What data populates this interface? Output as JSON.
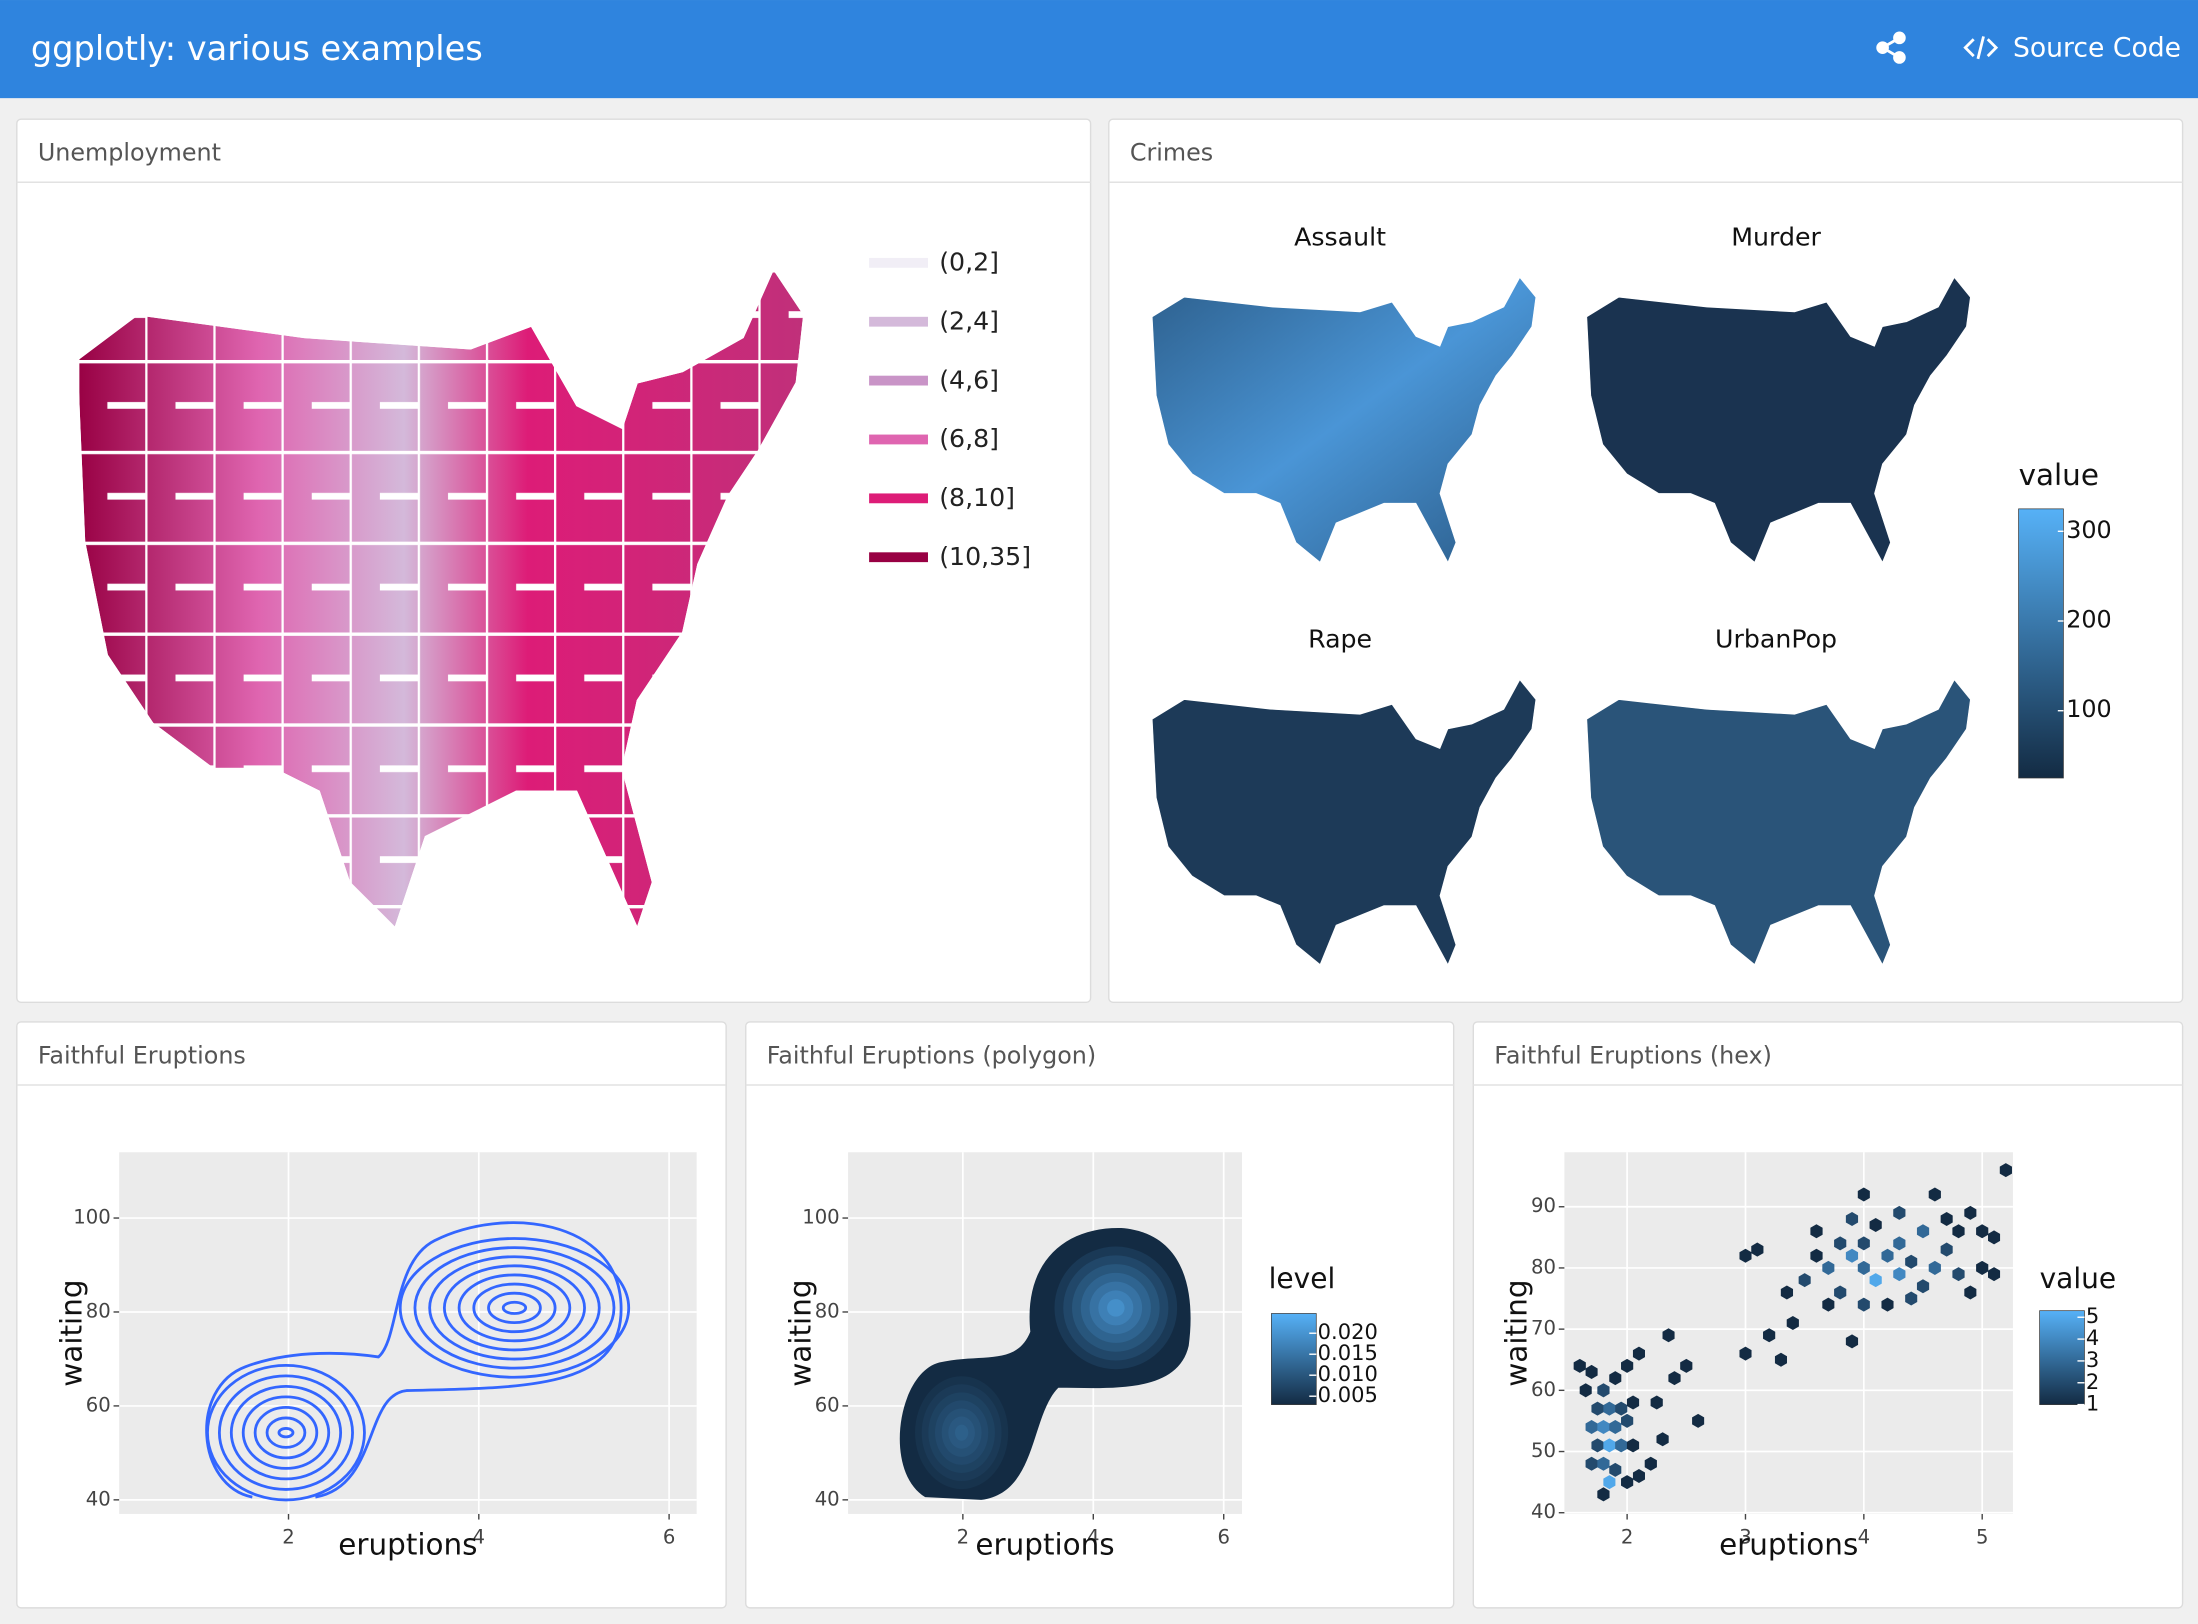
{
  "header": {
    "title": "ggplotly: various examples",
    "links": [
      "Source Code"
    ]
  },
  "panels": [
    {
      "title": "Unemployment",
      "chart_data": {
        "type": "choropleth",
        "legend": [
          {
            "label": "(0,2]",
            "color": "#f1eef6"
          },
          {
            "label": "(2,4]",
            "color": "#d4b9da"
          },
          {
            "label": "(4,6]",
            "color": "#c994c7"
          },
          {
            "label": "(6,8]",
            "color": "#df65b0"
          },
          {
            "label": "(8,10]",
            "color": "#dd1c77"
          },
          {
            "label": "(10,35]",
            "color": "#980043"
          }
        ]
      }
    },
    {
      "title": "Crimes",
      "chart_data": {
        "type": "choropleth-facets",
        "facets": [
          "Assault",
          "Murder",
          "Rape",
          "UrbanPop"
        ],
        "colorbar": {
          "title": "value",
          "lim": [
            25,
            325
          ],
          "ticks": [
            100,
            200,
            300
          ],
          "colors": [
            "#132b43",
            "#56b1f7"
          ]
        }
      }
    },
    {
      "title": "Faithful Eruptions",
      "chart_data": {
        "type": "contour",
        "xlabel": "eruptions",
        "ylabel": "waiting",
        "xlim": [
          0.22,
          6.29
        ],
        "ylim": [
          37,
          114
        ],
        "xticks": [
          2,
          4,
          6
        ],
        "yticks": [
          40,
          60,
          80,
          100
        ],
        "color": "#3366ff",
        "grid": true
      }
    },
    {
      "title": "Faithful Eruptions (polygon)",
      "chart_data": {
        "type": "density-polygon",
        "xlabel": "eruptions",
        "ylabel": "waiting",
        "xlim": [
          0.24,
          6.28
        ],
        "ylim": [
          37,
          114
        ],
        "xticks": [
          2,
          4,
          6
        ],
        "yticks": [
          40,
          60,
          80,
          100
        ],
        "grid": true,
        "colorbar": {
          "title": "level",
          "lim": [
            0.003,
            0.0247
          ],
          "ticks": [
            {
              "value": 0.005,
              "label": "0.005"
            },
            {
              "value": 0.01,
              "label": "0.010"
            },
            {
              "value": 0.015,
              "label": "0.015"
            },
            {
              "value": 0.02,
              "label": "0.020"
            }
          ],
          "colors": [
            "#132b43",
            "#56b1f7"
          ]
        }
      }
    },
    {
      "title": "Faithful Eruptions (hex)",
      "chart_data": {
        "type": "hexbin",
        "xlabel": "eruptions",
        "ylabel": "waiting",
        "xlim": [
          1.47,
          5.26
        ],
        "ylim": [
          39.8,
          98.9
        ],
        "xticks": [
          2,
          3,
          4,
          5
        ],
        "yticks": [
          40,
          50,
          60,
          70,
          80,
          90
        ],
        "grid": true,
        "x": [
          1.7,
          1.8,
          1.9,
          2.0,
          2.1,
          1.75,
          1.85,
          1.95,
          2.05,
          1.7,
          1.8,
          1.9,
          2.0,
          1.75,
          1.85,
          1.95,
          2.05,
          1.7,
          1.8,
          1.9,
          1.85,
          2.0,
          2.1,
          2.2,
          2.3,
          2.25,
          2.4,
          2.35,
          2.6,
          1.65,
          1.6,
          2.5,
          1.8,
          3.0,
          3.2,
          3.3,
          3.35,
          3.5,
          3.6,
          3.7,
          3.8,
          3.9,
          4.0,
          4.1,
          4.2,
          4.3,
          4.4,
          4.5,
          4.6,
          4.7,
          4.8,
          4.9,
          5.0,
          5.1,
          3.7,
          3.8,
          4.0,
          4.2,
          4.4,
          3.9,
          4.1,
          4.3,
          4.5,
          4.7,
          4.9,
          4.6,
          5.0,
          4.0,
          3.4,
          4.3,
          4.0,
          3.6,
          4.8,
          5.1,
          3.9,
          3.0,
          3.1,
          5.2
        ],
        "y": [
          63,
          60,
          62,
          64,
          66,
          57,
          57,
          57,
          58,
          54,
          54,
          54,
          55,
          51,
          51,
          51,
          51,
          48,
          48,
          47,
          45,
          45,
          46,
          48,
          52,
          58,
          62,
          69,
          55,
          60,
          64,
          64,
          43,
          66,
          69,
          65,
          76,
          78,
          82,
          80,
          84,
          82,
          80,
          78,
          82,
          79,
          81,
          77,
          80,
          83,
          79,
          76,
          80,
          85,
          74,
          76,
          74,
          74,
          75,
          88,
          87,
          89,
          86,
          88,
          89,
          92,
          86,
          92,
          71,
          84,
          84,
          86,
          86,
          79,
          68,
          82,
          83,
          96
        ],
        "values": [
          1,
          2,
          1,
          1,
          1,
          2,
          3,
          2,
          1,
          3,
          4,
          3,
          2,
          2,
          5,
          3,
          1,
          2,
          3,
          2,
          5,
          1,
          1,
          1,
          1,
          1,
          1,
          1,
          1,
          1,
          1,
          1,
          1,
          1,
          1,
          1,
          1,
          2,
          1,
          3,
          2,
          4,
          3,
          5,
          3,
          4,
          2,
          2,
          3,
          2,
          2,
          1,
          1,
          1,
          1,
          2,
          2,
          1,
          2,
          2,
          1,
          2,
          3,
          1,
          1,
          1,
          1,
          1,
          1,
          3,
          2,
          1,
          1,
          1,
          1,
          1,
          1,
          1
        ],
        "colorbar": {
          "title": "value",
          "lim": [
            1,
            5.3
          ],
          "ticks": [
            1,
            2,
            3,
            4,
            5
          ],
          "colors": [
            "#132b43",
            "#56b1f7"
          ]
        }
      }
    }
  ]
}
